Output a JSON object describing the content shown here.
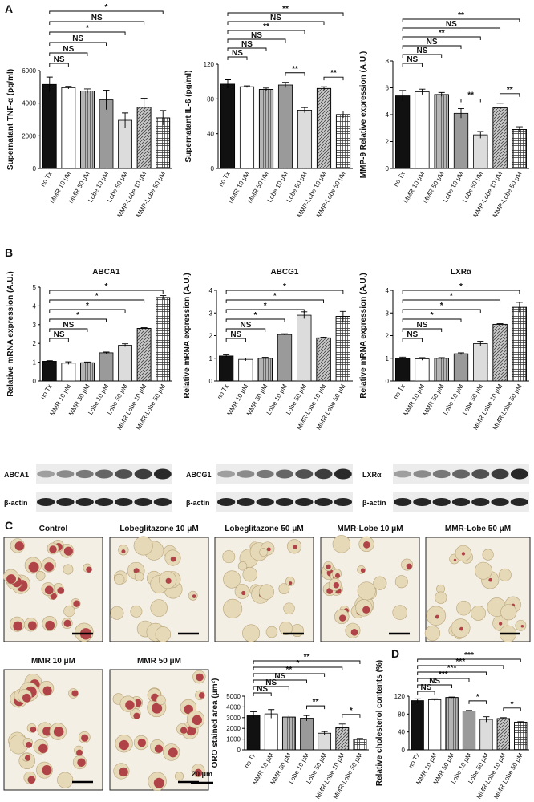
{
  "panel_labels": [
    "A",
    "B",
    "C",
    "D"
  ],
  "blots": [
    {
      "label": "ABCA1",
      "control_label": "β-actin"
    },
    {
      "label": "ABCG1",
      "control_label": "β-actin"
    },
    {
      "label": "LXRα",
      "control_label": "β-actin"
    }
  ],
  "micrographs": [
    {
      "label": "Control"
    },
    {
      "label": "Lobeglitazone  10 μM"
    },
    {
      "label": "Lobeglitazone  50 μM"
    },
    {
      "label": "MMR-Lobe  10 μM"
    },
    {
      "label": "MMR-Lobe  50 μM"
    },
    {
      "label": "MMR 10 μM"
    },
    {
      "label": "MMR 50 μM"
    }
  ],
  "scale_bar": "20 μm",
  "chart_data": [
    {
      "type": "bar",
      "ylabel": "Supernatant TNF-α (pg/ml)",
      "categories": [
        "no Tx",
        "MMR 10 μM",
        "MMR 50 μM",
        "Lobe 10 μM",
        "Lobe 50 μM",
        "MMR-Lobe 10 μM",
        "MMR-Lobe 50 μM"
      ],
      "values": [
        5150,
        4950,
        4750,
        4200,
        2950,
        3750,
        3100
      ],
      "errors": [
        450,
        80,
        120,
        600,
        450,
        550,
        450
      ],
      "colors": [
        "#111111",
        "#ffffff",
        "#b5b5b5",
        "#9a9a9a",
        "#dcdcdc",
        "#c8c8c8",
        "#ffffff"
      ],
      "hatches": [
        null,
        null,
        "vertical",
        null,
        null,
        "diagonal",
        "grid"
      ],
      "ylim": [
        0,
        6000
      ],
      "yticks": [
        0,
        2000,
        4000,
        6000
      ],
      "annotations": [
        {
          "from": 0,
          "to": 6,
          "label": "*"
        },
        {
          "from": 0,
          "to": 5,
          "label": "NS"
        },
        {
          "from": 0,
          "to": 4,
          "label": "*"
        },
        {
          "from": 0,
          "to": 3,
          "label": "NS"
        },
        {
          "from": 0,
          "to": 2,
          "label": "NS"
        },
        {
          "from": 0,
          "to": 1,
          "label": "NS"
        }
      ]
    },
    {
      "type": "bar",
      "ylabel": "Supernatant IL-6 (pg/ml)",
      "categories": [
        "no Tx",
        "MMR 10 μM",
        "MMR 50 μM",
        "Lobe 10 μM",
        "Lobe 50 μM",
        "MMR-Lobe 10 μM",
        "MMR-Lobe 50 μM"
      ],
      "values": [
        97,
        94,
        91,
        96,
        67,
        92,
        62
      ],
      "errors": [
        5,
        1,
        1.5,
        3,
        3,
        2,
        4
      ],
      "colors": [
        "#111111",
        "#ffffff",
        "#b5b5b5",
        "#9a9a9a",
        "#dcdcdc",
        "#c8c8c8",
        "#ffffff"
      ],
      "hatches": [
        null,
        null,
        "vertical",
        null,
        null,
        "diagonal",
        "grid"
      ],
      "ylim": [
        0,
        120
      ],
      "yticks": [
        0,
        40,
        80,
        120
      ],
      "annotations": [
        {
          "from": 0,
          "to": 6,
          "label": "**"
        },
        {
          "from": 0,
          "to": 5,
          "label": "NS"
        },
        {
          "from": 0,
          "to": 4,
          "label": "**"
        },
        {
          "from": 0,
          "to": 3,
          "label": "NS"
        },
        {
          "from": 0,
          "to": 2,
          "label": "NS"
        },
        {
          "from": 0,
          "to": 1,
          "label": "NS"
        },
        {
          "from": 3,
          "to": 4,
          "label": "**"
        },
        {
          "from": 5,
          "to": 6,
          "label": "**"
        }
      ]
    },
    {
      "type": "bar",
      "ylabel": "MMP-9 Relative expression (A.U.)",
      "categories": [
        "no Tx",
        "MMR 10 μM",
        "MMR 50 μM",
        "Lobe 10 μM",
        "Lobe 50 μM",
        "MMR-Lobe 10 μM",
        "MMR-Lobe 50 μM"
      ],
      "values": [
        5.4,
        5.7,
        5.5,
        4.1,
        2.5,
        4.5,
        2.9
      ],
      "errors": [
        0.4,
        0.2,
        0.15,
        0.35,
        0.25,
        0.35,
        0.2
      ],
      "colors": [
        "#111111",
        "#ffffff",
        "#b5b5b5",
        "#9a9a9a",
        "#dcdcdc",
        "#c8c8c8",
        "#ffffff"
      ],
      "hatches": [
        null,
        null,
        "vertical",
        null,
        null,
        "diagonal",
        "grid"
      ],
      "ylim": [
        0,
        8
      ],
      "yticks": [
        0,
        2,
        4,
        6,
        8
      ],
      "annotations": [
        {
          "from": 0,
          "to": 6,
          "label": "**"
        },
        {
          "from": 0,
          "to": 5,
          "label": "NS"
        },
        {
          "from": 0,
          "to": 4,
          "label": "**"
        },
        {
          "from": 0,
          "to": 3,
          "label": "NS"
        },
        {
          "from": 0,
          "to": 2,
          "label": "NS"
        },
        {
          "from": 0,
          "to": 1,
          "label": "NS"
        },
        {
          "from": 3,
          "to": 4,
          "label": "**"
        },
        {
          "from": 5,
          "to": 6,
          "label": "**"
        }
      ]
    },
    {
      "type": "bar",
      "title": "ABCA1",
      "ylabel": "Relative mRNA expression (A.U.)",
      "categories": [
        "no Tx",
        "MMR 10 μM",
        "MMR 50 μM",
        "Lobe 10 μM",
        "Lobe 50 μM",
        "MMR-Lobe 10 μM",
        "MMR-Lobe 50 μM"
      ],
      "values": [
        1.05,
        0.95,
        0.97,
        1.5,
        1.9,
        2.8,
        4.45
      ],
      "errors": [
        0.03,
        0.07,
        0.04,
        0.04,
        0.08,
        0.04,
        0.1
      ],
      "colors": [
        "#111111",
        "#ffffff",
        "#b5b5b5",
        "#9a9a9a",
        "#dcdcdc",
        "#c8c8c8",
        "#ffffff"
      ],
      "hatches": [
        null,
        null,
        "vertical",
        null,
        null,
        "diagonal",
        "grid"
      ],
      "ylim": [
        0,
        5
      ],
      "yticks": [
        0,
        1,
        2,
        3,
        4,
        5
      ],
      "annotations": [
        {
          "from": 0,
          "to": 6,
          "label": "*"
        },
        {
          "from": 0,
          "to": 5,
          "label": "*"
        },
        {
          "from": 0,
          "to": 4,
          "label": "*"
        },
        {
          "from": 0,
          "to": 3,
          "label": "*"
        },
        {
          "from": 0,
          "to": 2,
          "label": "NS"
        },
        {
          "from": 0,
          "to": 1,
          "label": "NS"
        }
      ]
    },
    {
      "type": "bar",
      "title": "ABCG1",
      "ylabel": "Relative mRNA expression (A.U.)",
      "categories": [
        "no Tx",
        "MMR 10 μM",
        "MMR 50 μM",
        "Lobe 10 μM",
        "Lobe 50 μM",
        "MMR-Lobe 10 μM",
        "MMR-Lobe 50 μM"
      ],
      "values": [
        1.1,
        0.95,
        1.0,
        2.05,
        2.9,
        1.9,
        2.85
      ],
      "errors": [
        0.05,
        0.06,
        0.04,
        0.03,
        0.15,
        0.03,
        0.22
      ],
      "colors": [
        "#111111",
        "#ffffff",
        "#b5b5b5",
        "#9a9a9a",
        "#dcdcdc",
        "#c8c8c8",
        "#ffffff"
      ],
      "hatches": [
        null,
        null,
        "vertical",
        null,
        null,
        "diagonal",
        "grid"
      ],
      "ylim": [
        0,
        4
      ],
      "yticks": [
        0,
        1,
        2,
        3,
        4
      ],
      "annotations": [
        {
          "from": 0,
          "to": 6,
          "label": "*"
        },
        {
          "from": 0,
          "to": 5,
          "label": "*"
        },
        {
          "from": 0,
          "to": 4,
          "label": "*"
        },
        {
          "from": 0,
          "to": 3,
          "label": "*"
        },
        {
          "from": 0,
          "to": 2,
          "label": "NS"
        },
        {
          "from": 0,
          "to": 1,
          "label": "NS"
        }
      ]
    },
    {
      "type": "bar",
      "title": "LXRα",
      "ylabel": "Relative mRNA expression (A.U.)",
      "categories": [
        "no Tx",
        "MMR 10 μM",
        "MMR 50 μM",
        "Lobe 10 μM",
        "Lobe 50 μM",
        "MMR-Lobe 10 μM",
        "MMR-Lobe 50 μM"
      ],
      "values": [
        1.0,
        0.97,
        1.0,
        1.2,
        1.65,
        2.5,
        3.25
      ],
      "errors": [
        0.05,
        0.06,
        0.03,
        0.04,
        0.1,
        0.03,
        0.22
      ],
      "colors": [
        "#111111",
        "#ffffff",
        "#b5b5b5",
        "#9a9a9a",
        "#dcdcdc",
        "#c8c8c8",
        "#ffffff"
      ],
      "hatches": [
        null,
        null,
        "vertical",
        null,
        null,
        "diagonal",
        "grid"
      ],
      "ylim": [
        0,
        4
      ],
      "yticks": [
        0,
        1,
        2,
        3,
        4
      ],
      "annotations": [
        {
          "from": 0,
          "to": 6,
          "label": "*"
        },
        {
          "from": 0,
          "to": 5,
          "label": "*"
        },
        {
          "from": 0,
          "to": 4,
          "label": "*"
        },
        {
          "from": 0,
          "to": 3,
          "label": "*"
        },
        {
          "from": 0,
          "to": 2,
          "label": "NS"
        },
        {
          "from": 0,
          "to": 1,
          "label": "NS"
        }
      ]
    },
    {
      "type": "bar",
      "ylabel": "ORO stained area (μm²)",
      "categories": [
        "no Tx",
        "MMR 10 μM",
        "MMR 50 μM",
        "Lobe 10 μM",
        "Lobe 50 μM",
        "MMR-Lobe 10 μM",
        "MMR-Lobe 50 μM"
      ],
      "values": [
        3250,
        3350,
        3050,
        2950,
        1550,
        2050,
        1000
      ],
      "errors": [
        300,
        400,
        200,
        250,
        150,
        350,
        60
      ],
      "colors": [
        "#111111",
        "#ffffff",
        "#b5b5b5",
        "#9a9a9a",
        "#dcdcdc",
        "#c8c8c8",
        "#ffffff"
      ],
      "hatches": [
        null,
        null,
        "vertical",
        null,
        null,
        "diagonal",
        "grid"
      ],
      "ylim": [
        0,
        5000
      ],
      "yticks": [
        0,
        1000,
        2000,
        3000,
        4000,
        5000
      ],
      "annotations": [
        {
          "from": 0,
          "to": 6,
          "label": "**"
        },
        {
          "from": 0,
          "to": 5,
          "label": "*"
        },
        {
          "from": 0,
          "to": 4,
          "label": "**"
        },
        {
          "from": 0,
          "to": 3,
          "label": "NS"
        },
        {
          "from": 0,
          "to": 2,
          "label": "NS"
        },
        {
          "from": 0,
          "to": 1,
          "label": "NS"
        },
        {
          "from": 3,
          "to": 4,
          "label": "**"
        },
        {
          "from": 5,
          "to": 6,
          "label": "*"
        }
      ]
    },
    {
      "type": "bar",
      "ylabel": "Relative cholesterol contents (%)",
      "categories": [
        "no Tx",
        "MMR 10 μM",
        "MMR 50 μM",
        "Lobe 10 μM",
        "Lobe 50 μM",
        "MMR-Lobe 10 μM",
        "MMR-Lobe 50 μM"
      ],
      "values": [
        110,
        112,
        117,
        87,
        68,
        70,
        62
      ],
      "errors": [
        4,
        2,
        1,
        1,
        6,
        2,
        1
      ],
      "colors": [
        "#111111",
        "#ffffff",
        "#b5b5b5",
        "#9a9a9a",
        "#dcdcdc",
        "#c8c8c8",
        "#ffffff"
      ],
      "hatches": [
        null,
        null,
        "vertical",
        null,
        null,
        "diagonal",
        "grid"
      ],
      "ylim": [
        0,
        120
      ],
      "yticks": [
        0,
        40,
        80,
        120
      ],
      "annotations": [
        {
          "from": 0,
          "to": 6,
          "label": "***"
        },
        {
          "from": 0,
          "to": 5,
          "label": "***"
        },
        {
          "from": 0,
          "to": 4,
          "label": "***"
        },
        {
          "from": 0,
          "to": 3,
          "label": "***"
        },
        {
          "from": 0,
          "to": 2,
          "label": "NS"
        },
        {
          "from": 0,
          "to": 1,
          "label": "NS"
        },
        {
          "from": 3,
          "to": 4,
          "label": "*"
        },
        {
          "from": 5,
          "to": 6,
          "label": "*"
        }
      ]
    }
  ]
}
